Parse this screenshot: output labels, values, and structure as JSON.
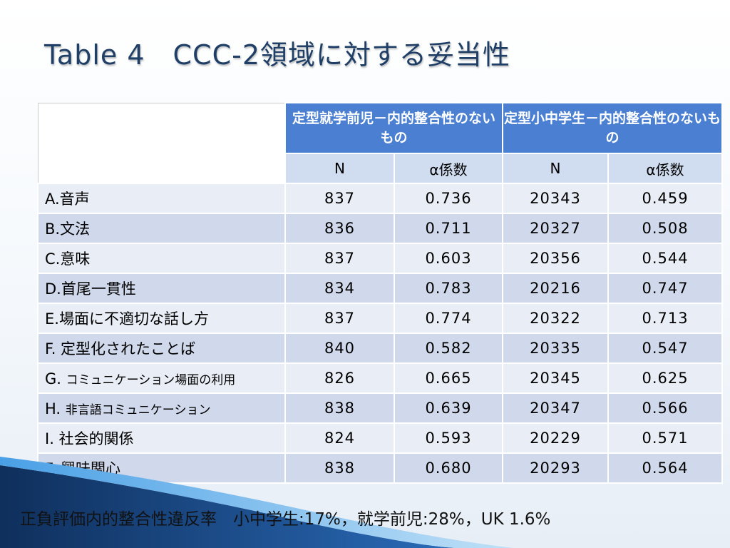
{
  "title": "Table 4　CCC-2領域に対する妥当性",
  "table": {
    "group_headers": [
      "定型就学前児－内的整合性のないもの",
      "定型小中学生－内的整合性のないもの"
    ],
    "sub_headers": [
      "N",
      "α係数",
      "N",
      "α係数"
    ],
    "rows": [
      {
        "label": "A.音声",
        "n1": "837",
        "a1": "0.736",
        "n2": "20343",
        "a2": "0.459"
      },
      {
        "label": "B.文法",
        "n1": "836",
        "a1": "0.711",
        "n2": "20327",
        "a2": "0.508"
      },
      {
        "label": "C.意味",
        "n1": "837",
        "a1": "0.603",
        "n2": "20356",
        "a2": "0.544"
      },
      {
        "label": "D.首尾一貫性",
        "n1": "834",
        "a1": "0.783",
        "n2": "20216",
        "a2": "0.747"
      },
      {
        "label": "E.場面に不適切な話し方",
        "n1": "837",
        "a1": "0.774",
        "n2": "20322",
        "a2": "0.713"
      },
      {
        "label": "F. 定型化されたことば",
        "n1": "840",
        "a1": "0.582",
        "n2": "20335",
        "a2": "0.547"
      },
      {
        "label_prefix": "G. ",
        "label_small": "コミュニケーション場面の利用",
        "n1": "826",
        "a1": "0.665",
        "n2": "20345",
        "a2": "0.625"
      },
      {
        "label_prefix": "H. ",
        "label_small": "非言語コミュニケーション",
        "n1": "838",
        "a1": "0.639",
        "n2": "20347",
        "a2": "0.566"
      },
      {
        "label": "I. 社会的関係",
        "n1": "824",
        "a1": "0.593",
        "n2": "20229",
        "a2": "0.571"
      },
      {
        "label": "F. 興味関心",
        "n1": "838",
        "a1": "0.680",
        "n2": "20293",
        "a2": "0.564"
      }
    ]
  },
  "footer": "正負評価内的整合性違反率　小中学生:17%，就学前児:28%，UK 1.6%",
  "colors": {
    "title": "#1f3f66",
    "header_blue": "#4a7fd1",
    "subheader": "#d0ddf0",
    "row_light": "#e9edf5",
    "row_dark": "#d0d9eb",
    "swoosh_dark": "#123a6b",
    "swoosh_light": "#3f8fd8"
  }
}
